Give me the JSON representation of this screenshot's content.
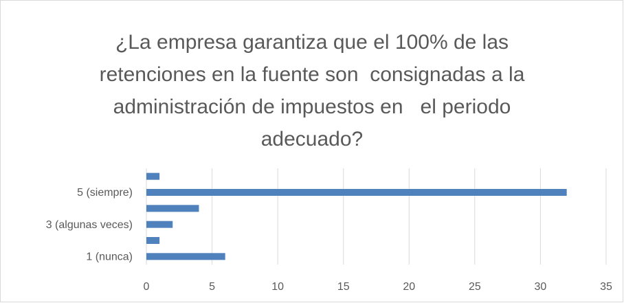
{
  "chart_data": {
    "type": "bar",
    "orientation": "horizontal",
    "title": "¿La empresa garantiza que el 100% de las retenciones en la fuente son  consignadas a la administración de impuestos en   el periodo adecuado?",
    "categories": [
      "1 (nunca)",
      null,
      "3 (algunas veces)",
      null,
      "5 (siempre)",
      null
    ],
    "values": [
      6,
      1,
      2,
      4,
      32,
      1
    ],
    "color": "#4f81bd",
    "xlim": [
      0,
      35
    ],
    "xticks": [
      0,
      5,
      10,
      15,
      20,
      25,
      30,
      35
    ],
    "grid": true
  }
}
